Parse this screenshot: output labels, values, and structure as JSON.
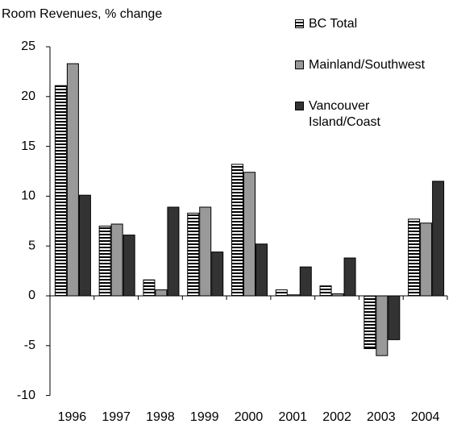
{
  "chart_data": {
    "type": "bar",
    "y_label": "Room Revenues, % change",
    "categories": [
      "1996",
      "1997",
      "1998",
      "1999",
      "2000",
      "2001",
      "2002",
      "2003",
      "2004"
    ],
    "series": [
      {
        "name": "BC Total",
        "color": "#000000",
        "pattern": "horizontal-stripes",
        "values": [
          21.1,
          7.0,
          1.6,
          8.3,
          13.2,
          0.6,
          1.0,
          -5.3,
          7.7
        ]
      },
      {
        "name": "Mainland/Southwest",
        "color": "#999999",
        "values": [
          23.3,
          7.2,
          0.6,
          8.9,
          12.4,
          0.1,
          0.2,
          -6.0,
          7.3
        ]
      },
      {
        "name": "Vancouver Island/Coast",
        "color": "#333333",
        "values": [
          10.1,
          6.1,
          8.9,
          4.4,
          5.2,
          2.9,
          3.8,
          -4.4,
          11.5
        ]
      }
    ],
    "ylim": [
      -10,
      25
    ],
    "yticks": [
      -10,
      -5,
      0,
      5,
      10,
      15,
      20,
      25
    ],
    "grid": false,
    "legend": "top-right"
  }
}
